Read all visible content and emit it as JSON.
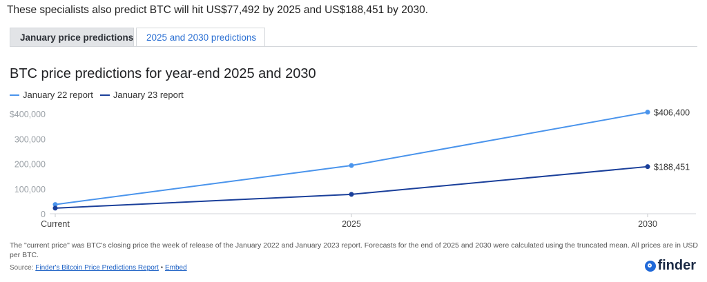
{
  "intro_text": "These specialists also predict BTC will hit US$77,492 by 2025 and US$188,451 by 2030.",
  "tabs": [
    {
      "label": "January price predictions",
      "active": false
    },
    {
      "label": "2025 and 2030 predictions",
      "active": true
    }
  ],
  "colors": {
    "series1": "#4a94ec",
    "series2": "#1a3f9a",
    "tab_active_text": "#2a6fd3"
  },
  "chart_data": {
    "type": "line",
    "title": "BTC price predictions for year-end 2025 and 2030",
    "xlabel": "",
    "ylabel": "",
    "categories": [
      "Current",
      "2025",
      "2030"
    ],
    "series": [
      {
        "name": "January 22 report",
        "values": [
          37000,
          193000,
          406400
        ]
      },
      {
        "name": "January 23 report",
        "values": [
          22500,
          77492,
          188451
        ]
      }
    ],
    "ylim": [
      0,
      400000
    ],
    "yticks": [
      {
        "value": 0,
        "label": "0"
      },
      {
        "value": 100000,
        "label": "100,000"
      },
      {
        "value": 200000,
        "label": "200,000"
      },
      {
        "value": 300000,
        "label": "300,000"
      },
      {
        "value": 400000,
        "label": "$400,000"
      }
    ],
    "end_labels": [
      "$406,400",
      "$188,451"
    ],
    "legend_position": "top-left",
    "grid": false
  },
  "footnote": "The \"current price\" was BTC's closing price the week of release of the January 2022 and January 2023 report. Forecasts for the end of 2025 and 2030 were calculated using the truncated mean. All prices are in USD per BTC.",
  "source": {
    "prefix": "Source: ",
    "link_text": "Finder's Bitcoin Price Predictions Report",
    "separator": " • ",
    "embed_text": "Embed"
  },
  "brand": {
    "name": "finder",
    "icon": "search-magnifier-icon"
  }
}
